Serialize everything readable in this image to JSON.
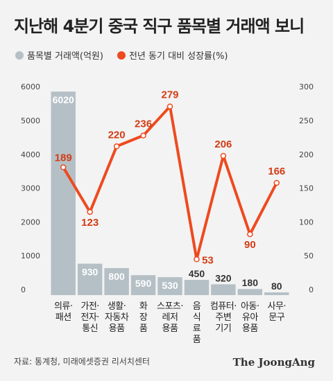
{
  "title": "지난해 4분기 중국 직구 품목별 거래액 보니",
  "legend": {
    "bar_label": "품목별 거래액(억원)",
    "line_label": "전년 동기 대비 성장률(%)"
  },
  "colors": {
    "bar": "#b5c0c6",
    "line": "#ee4a1f",
    "line_label": "#d23c15",
    "bar_label": "#ffffff",
    "bar_label_outside": "#333333",
    "tick": "#444444"
  },
  "chart_data": {
    "type": "bar",
    "categories": [
      [
        "의류·",
        "패션"
      ],
      [
        "가전·",
        "전자·",
        "통신"
      ],
      [
        "생활·",
        "자동차",
        "용품"
      ],
      [
        "화",
        "장",
        "품"
      ],
      [
        "스포츠·",
        "레저",
        "용품"
      ],
      [
        "음",
        "식",
        "료",
        "품"
      ],
      [
        "컴퓨터·",
        "주변",
        "기기"
      ],
      [
        "아동·",
        "유아",
        "용품"
      ],
      [
        "사무·",
        "문구"
      ]
    ],
    "series": [
      {
        "name": "품목별 거래액(억원)",
        "type": "bar",
        "axis": "left",
        "values": [
          6020,
          930,
          800,
          590,
          530,
          450,
          320,
          180,
          80
        ]
      },
      {
        "name": "전년 동기 대비 성장률(%)",
        "type": "line",
        "axis": "right",
        "values": [
          189,
          123,
          220,
          236,
          279,
          53,
          206,
          90,
          166
        ]
      }
    ],
    "y_left": {
      "min": 0,
      "max": 6000,
      "ticks": [
        0,
        1000,
        2000,
        3000,
        4000,
        5000,
        6000
      ]
    },
    "y_right": {
      "min": 0,
      "max": 300,
      "ticks": [
        0,
        50,
        100,
        150,
        200,
        250,
        300
      ]
    },
    "grid": false,
    "legend_position": "top-left"
  },
  "footer": {
    "source": "자료: 통계청, 미래에셋증권 리서치센터",
    "brand": "The JoongAng"
  }
}
